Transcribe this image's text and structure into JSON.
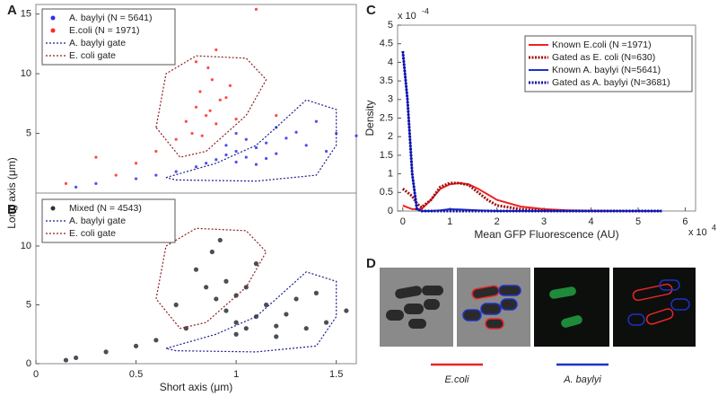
{
  "chart_data": [
    {
      "panel": "A",
      "type": "scatter",
      "xlim": [
        0,
        1.6
      ],
      "ylim": [
        0,
        15.8
      ],
      "yticks": [
        5,
        10,
        15
      ],
      "y_label": "Long axis (μm)",
      "legend": "upper left",
      "series": [
        {
          "name": "A. baylyi (N = 5641)",
          "color": "#3030ee",
          "style": "points",
          "x": [
            0.95,
            1.0,
            1.05,
            1.1,
            0.9,
            1.15,
            1.2,
            1.25,
            1.3,
            1.35,
            0.85,
            0.8,
            1.0,
            1.05,
            1.1,
            1.2,
            0.7,
            0.5,
            0.3,
            0.2,
            1.4,
            0.95,
            1.45,
            1.5,
            1.6,
            0.6,
            1.15,
            1.0
          ],
          "values": [
            3.2,
            3.5,
            3.0,
            3.8,
            2.8,
            4.2,
            3.3,
            4.6,
            5.1,
            4.0,
            2.5,
            2.2,
            2.6,
            4.5,
            2.4,
            5.5,
            1.8,
            1.2,
            0.8,
            0.5,
            6.0,
            4.0,
            3.5,
            5.0,
            4.8,
            1.5,
            2.9,
            5.0
          ]
        },
        {
          "name": "E.coli (N = 1971)",
          "color": "#ff2a2a",
          "style": "points",
          "x": [
            0.85,
            0.8,
            0.9,
            0.82,
            0.88,
            0.78,
            0.92,
            0.75,
            0.86,
            0.95,
            0.7,
            1.0,
            0.83,
            0.9,
            1.1,
            0.5,
            0.4,
            0.3,
            0.15,
            0.6,
            1.2,
            0.87,
            0.8,
            0.97
          ],
          "values": [
            6.5,
            7.2,
            5.8,
            8.5,
            9.5,
            5.0,
            7.8,
            6.0,
            10.5,
            8.0,
            4.5,
            6.2,
            4.8,
            12.0,
            15.4,
            2.5,
            1.5,
            3.0,
            0.8,
            3.5,
            6.5,
            6.9,
            11.0,
            9.0
          ]
        },
        {
          "name": "A. baylyi gate",
          "color": "#1c1c90",
          "style": "gate",
          "x": [
            0.65,
            0.9,
            1.1,
            1.2,
            1.35,
            1.5,
            1.5,
            1.4,
            1.1,
            0.7,
            0.65
          ],
          "values": [
            1.3,
            2.5,
            4.0,
            5.5,
            7.8,
            7.0,
            4.0,
            1.5,
            1.0,
            1.1,
            1.3
          ]
        },
        {
          "name": "E. coli gate",
          "color": "#901c1c",
          "style": "gate",
          "x": [
            0.6,
            0.65,
            0.8,
            1.05,
            1.15,
            1.05,
            0.85,
            0.72,
            0.6
          ],
          "values": [
            5.5,
            10.0,
            11.5,
            11.3,
            9.5,
            6.5,
            3.5,
            3.0,
            5.5
          ]
        }
      ]
    },
    {
      "panel": "B",
      "type": "scatter",
      "xlim": [
        0,
        1.6
      ],
      "ylim": [
        0,
        14.5
      ],
      "yticks": [
        0,
        5,
        10
      ],
      "xticks": [
        0,
        0.5,
        1,
        1.5
      ],
      "x_label": "Short axis (μm)",
      "legend": "upper left",
      "series": [
        {
          "name": "Mixed (N = 4543)",
          "color": "#2a3038",
          "style": "points",
          "x": [
            1.0,
            1.05,
            0.95,
            1.1,
            0.9,
            1.2,
            1.15,
            1.25,
            0.85,
            0.8,
            0.88,
            1.0,
            0.75,
            1.3,
            1.4,
            1.45,
            0.6,
            0.5,
            0.35,
            0.2,
            0.15,
            1.05,
            0.95,
            1.1,
            1.2,
            1.35,
            0.92,
            1.55,
            0.7,
            1.0
          ],
          "values": [
            3.5,
            3.0,
            4.5,
            4.0,
            5.5,
            3.2,
            5.0,
            4.2,
            6.5,
            8.0,
            9.5,
            2.5,
            3.0,
            5.5,
            6.0,
            3.5,
            2.0,
            1.5,
            1.0,
            0.5,
            0.3,
            6.5,
            7.0,
            8.5,
            2.3,
            3.0,
            10.5,
            4.5,
            5.0,
            5.8
          ]
        },
        {
          "name": "A. baylyi gate",
          "color": "#1c1c90",
          "style": "gate",
          "x": [
            0.65,
            0.9,
            1.1,
            1.2,
            1.35,
            1.5,
            1.5,
            1.4,
            1.1,
            0.7,
            0.65
          ],
          "values": [
            1.3,
            2.5,
            4.0,
            5.5,
            7.8,
            7.0,
            4.0,
            1.5,
            1.0,
            1.1,
            1.3
          ]
        },
        {
          "name": "E. coli gate",
          "color": "#901c1c",
          "style": "gate",
          "x": [
            0.6,
            0.65,
            0.8,
            1.05,
            1.15,
            1.05,
            0.85,
            0.72,
            0.6
          ],
          "values": [
            5.5,
            10.0,
            11.5,
            11.3,
            9.5,
            6.5,
            3.5,
            3.0,
            5.5
          ]
        }
      ]
    },
    {
      "panel": "C",
      "type": "line",
      "xlim": [
        -0.11,
        6.22
      ],
      "ylim": [
        0,
        5
      ],
      "xticks": [
        0,
        1,
        2,
        3,
        4,
        5,
        6
      ],
      "yticks": [
        0,
        0.5,
        1,
        1.5,
        2,
        2.5,
        3,
        3.5,
        4,
        4.5,
        5
      ],
      "x_label": "Mean GFP Fluorescence (AU)",
      "y_label": "Density",
      "y_scale_label": "x 10",
      "y_scale_exponent": "-4",
      "x_scale_label": "x 10",
      "x_scale_exponent": "4",
      "legend": "upper right",
      "x": [
        0,
        0.1,
        0.2,
        0.3,
        0.4,
        0.6,
        0.8,
        1,
        1.2,
        1.4,
        1.6,
        1.8,
        2,
        2.5,
        3,
        3.5,
        4,
        5,
        5.5
      ],
      "series": [
        {
          "name": "Known E.coli (N =1971)",
          "color": "#ee2222",
          "style": "solid",
          "values": [
            0.15,
            0.1,
            0.05,
            0.05,
            0.05,
            0.3,
            0.6,
            0.72,
            0.75,
            0.72,
            0.6,
            0.45,
            0.3,
            0.12,
            0.05,
            0.02,
            0.01,
            0,
            0
          ]
        },
        {
          "name": "Gated as E. coli (N=630)",
          "color": "#a01010",
          "style": "dotted",
          "values": [
            0.6,
            0.5,
            0.4,
            0.2,
            0.1,
            0.3,
            0.65,
            0.75,
            0.75,
            0.7,
            0.5,
            0.3,
            0.15,
            0.05,
            0.01,
            0,
            0,
            0,
            0
          ]
        },
        {
          "name": "Known A. baylyi (N=5641)",
          "color": "#2030d0",
          "style": "solid",
          "values": [
            4.3,
            3.0,
            1.0,
            0.05,
            0,
            0,
            0.02,
            0.05,
            0.04,
            0.03,
            0.02,
            0.01,
            0,
            0,
            0,
            0,
            0,
            0,
            0
          ]
        },
        {
          "name": "Gated as A. baylyi (N=3681)",
          "color": "#1010a0",
          "style": "dotted",
          "values": [
            4.3,
            3.0,
            1.0,
            0.05,
            0,
            0,
            0,
            0,
            0,
            0,
            0,
            0,
            0,
            0,
            0,
            0,
            0,
            0,
            0
          ]
        }
      ]
    }
  ],
  "panel_d": {
    "label": "D",
    "legend": [
      {
        "name": "E.coli",
        "color": "#e8242a"
      },
      {
        "name": "A. baylyi",
        "color": "#2030c8"
      }
    ]
  }
}
